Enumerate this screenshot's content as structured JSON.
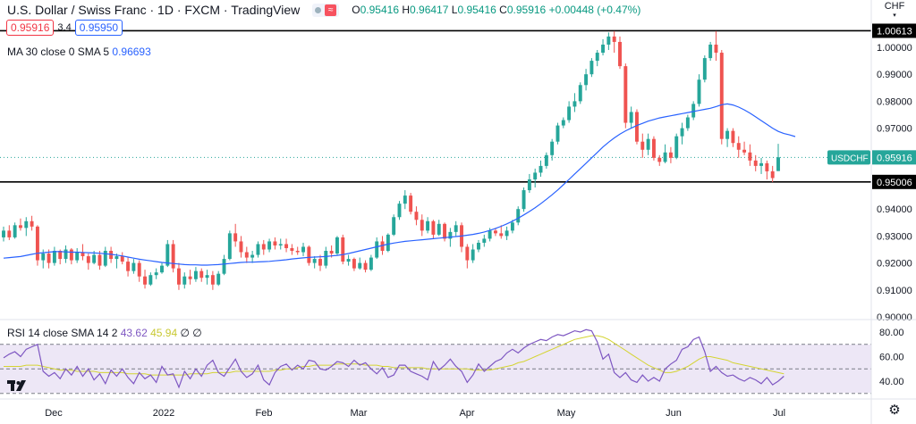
{
  "header": {
    "title": "U.S. Dollar / Swiss Franc · 1D · FXCM · TradingView",
    "open_label": "O",
    "open": "0.95416",
    "high_label": "H",
    "high": "0.96417",
    "low_label": "L",
    "low": "0.95416",
    "close_label": "C",
    "close": "0.95916",
    "change": "+0.00448 (+0.47%)",
    "sell_price": "0.95916",
    "spread": "3.4",
    "buy_price": "0.95950",
    "ma_label": "MA 30 close 0 SMA 5",
    "ma_value": "0.96693",
    "rsi_label": "RSI 14 close SMA 14 2",
    "rsi_value": "43.62",
    "rsi_sma_value": "45.94",
    "rsi_extra": "∅ ∅"
  },
  "colors": {
    "up": "#26a69a",
    "down": "#ef5350",
    "ma": "#2962ff",
    "rsi": "#7e57c2",
    "rsi_sma": "#d4d432",
    "rsi_band": "#ede7f6"
  },
  "chart_data": [
    {
      "type": "candlestick",
      "title": "U.S. Dollar / Swiss Franc · 1D · FXCM",
      "currency": "CHF",
      "ylim": [
        0.9,
        1.009
      ],
      "y_ticks": [
        "1.00000",
        "0.99000",
        "0.98000",
        "0.97000",
        "0.96000",
        "0.95000",
        "0.94000",
        "0.93000",
        "0.92000",
        "0.91000",
        "0.90000"
      ],
      "x_ticks": [
        "Dec",
        "2022",
        "Feb",
        "Mar",
        "Apr",
        "May",
        "Jun",
        "Jul"
      ],
      "horizontal_levels": [
        {
          "label": "1.00613",
          "value": 1.00613
        },
        {
          "label": "0.95006",
          "value": 0.95006
        }
      ],
      "current_price": {
        "label": "USDCHF",
        "value": "0.95916"
      },
      "ohlc": [
        [
          0.9295,
          0.9335,
          0.928,
          0.932
        ],
        [
          0.932,
          0.934,
          0.9285,
          0.9295
        ],
        [
          0.9295,
          0.935,
          0.929,
          0.934
        ],
        [
          0.934,
          0.9365,
          0.932,
          0.933
        ],
        [
          0.933,
          0.937,
          0.93,
          0.9355
        ],
        [
          0.9355,
          0.9375,
          0.932,
          0.9335
        ],
        [
          0.9335,
          0.934,
          0.919,
          0.921
        ],
        [
          0.921,
          0.925,
          0.918,
          0.9235
        ],
        [
          0.9235,
          0.925,
          0.918,
          0.92
        ],
        [
          0.92,
          0.926,
          0.919,
          0.9245
        ],
        [
          0.9245,
          0.925,
          0.9195,
          0.9215
        ],
        [
          0.9215,
          0.9265,
          0.92,
          0.925
        ],
        [
          0.925,
          0.9255,
          0.9195,
          0.921
        ],
        [
          0.921,
          0.9255,
          0.92,
          0.924
        ],
        [
          0.924,
          0.927,
          0.921,
          0.9225
        ],
        [
          0.9225,
          0.9235,
          0.9175,
          0.92
        ],
        [
          0.92,
          0.9245,
          0.9195,
          0.923
        ],
        [
          0.923,
          0.9245,
          0.9175,
          0.919
        ],
        [
          0.919,
          0.926,
          0.9185,
          0.9245
        ],
        [
          0.9245,
          0.926,
          0.92,
          0.9215
        ],
        [
          0.9215,
          0.9235,
          0.918,
          0.9225
        ],
        [
          0.9225,
          0.924,
          0.9195,
          0.9205
        ],
        [
          0.9205,
          0.922,
          0.915,
          0.917
        ],
        [
          0.917,
          0.9215,
          0.916,
          0.92
        ],
        [
          0.92,
          0.921,
          0.913,
          0.915
        ],
        [
          0.915,
          0.9175,
          0.9105,
          0.912
        ],
        [
          0.912,
          0.9165,
          0.9115,
          0.9155
        ],
        [
          0.9155,
          0.918,
          0.914,
          0.9165
        ],
        [
          0.9165,
          0.92,
          0.916,
          0.919
        ],
        [
          0.919,
          0.9285,
          0.9185,
          0.927
        ],
        [
          0.927,
          0.9285,
          0.9165,
          0.918
        ],
        [
          0.918,
          0.92,
          0.91,
          0.912
        ],
        [
          0.912,
          0.9165,
          0.9105,
          0.915
        ],
        [
          0.915,
          0.9175,
          0.912,
          0.914
        ],
        [
          0.914,
          0.9185,
          0.913,
          0.917
        ],
        [
          0.917,
          0.918,
          0.913,
          0.9145
        ],
        [
          0.9145,
          0.9175,
          0.912,
          0.9155
        ],
        [
          0.9155,
          0.917,
          0.91,
          0.912
        ],
        [
          0.912,
          0.917,
          0.9115,
          0.916
        ],
        [
          0.916,
          0.923,
          0.9155,
          0.9215
        ],
        [
          0.9215,
          0.932,
          0.921,
          0.931
        ],
        [
          0.931,
          0.9345,
          0.926,
          0.928
        ],
        [
          0.928,
          0.93,
          0.922,
          0.924
        ],
        [
          0.924,
          0.926,
          0.92,
          0.922
        ],
        [
          0.922,
          0.9245,
          0.92,
          0.923
        ],
        [
          0.923,
          0.928,
          0.922,
          0.927
        ],
        [
          0.927,
          0.9285,
          0.923,
          0.925
        ],
        [
          0.925,
          0.929,
          0.924,
          0.928
        ],
        [
          0.928,
          0.9295,
          0.925,
          0.9265
        ],
        [
          0.9265,
          0.929,
          0.925,
          0.927
        ],
        [
          0.927,
          0.929,
          0.924,
          0.9255
        ],
        [
          0.9255,
          0.927,
          0.923,
          0.9245
        ],
        [
          0.9245,
          0.926,
          0.923,
          0.924
        ],
        [
          0.924,
          0.9275,
          0.9225,
          0.926
        ],
        [
          0.926,
          0.9265,
          0.919,
          0.92
        ],
        [
          0.92,
          0.9225,
          0.918,
          0.9215
        ],
        [
          0.9215,
          0.923,
          0.917,
          0.919
        ],
        [
          0.919,
          0.926,
          0.918,
          0.9245
        ],
        [
          0.9245,
          0.9265,
          0.922,
          0.9235
        ],
        [
          0.9235,
          0.93,
          0.923,
          0.9295
        ],
        [
          0.9295,
          0.9305,
          0.9195,
          0.9205
        ],
        [
          0.9205,
          0.923,
          0.919,
          0.9215
        ],
        [
          0.9215,
          0.922,
          0.917,
          0.918
        ],
        [
          0.918,
          0.922,
          0.9175,
          0.92
        ],
        [
          0.92,
          0.921,
          0.9165,
          0.9175
        ],
        [
          0.9175,
          0.923,
          0.917,
          0.922
        ],
        [
          0.922,
          0.9295,
          0.9215,
          0.928
        ],
        [
          0.928,
          0.93,
          0.923,
          0.9245
        ],
        [
          0.9245,
          0.931,
          0.924,
          0.9305
        ],
        [
          0.9305,
          0.938,
          0.93,
          0.937
        ],
        [
          0.937,
          0.943,
          0.936,
          0.942
        ],
        [
          0.942,
          0.947,
          0.94,
          0.945
        ],
        [
          0.945,
          0.946,
          0.938,
          0.939
        ],
        [
          0.939,
          0.941,
          0.934,
          0.936
        ],
        [
          0.936,
          0.938,
          0.93,
          0.932
        ],
        [
          0.932,
          0.937,
          0.931,
          0.9355
        ],
        [
          0.9355,
          0.936,
          0.929,
          0.9305
        ],
        [
          0.9305,
          0.936,
          0.93,
          0.9345
        ],
        [
          0.9345,
          0.935,
          0.928,
          0.929
        ],
        [
          0.929,
          0.933,
          0.926,
          0.9315
        ],
        [
          0.9315,
          0.9355,
          0.93,
          0.934
        ],
        [
          0.934,
          0.935,
          0.924,
          0.926
        ],
        [
          0.926,
          0.927,
          0.918,
          0.921
        ],
        [
          0.921,
          0.927,
          0.92,
          0.925
        ],
        [
          0.925,
          0.9285,
          0.924,
          0.9275
        ],
        [
          0.9275,
          0.9305,
          0.926,
          0.929
        ],
        [
          0.929,
          0.933,
          0.928,
          0.932
        ],
        [
          0.932,
          0.933,
          0.93,
          0.931
        ],
        [
          0.931,
          0.934,
          0.929,
          0.93
        ],
        [
          0.93,
          0.9335,
          0.9285,
          0.932
        ],
        [
          0.932,
          0.936,
          0.931,
          0.935
        ],
        [
          0.935,
          0.941,
          0.934,
          0.94
        ],
        [
          0.94,
          0.948,
          0.939,
          0.947
        ],
        [
          0.947,
          0.953,
          0.946,
          0.951
        ],
        [
          0.951,
          0.955,
          0.948,
          0.9535
        ],
        [
          0.9535,
          0.958,
          0.952,
          0.956
        ],
        [
          0.956,
          0.961,
          0.955,
          0.96
        ],
        [
          0.96,
          0.966,
          0.958,
          0.965
        ],
        [
          0.965,
          0.972,
          0.964,
          0.971
        ],
        [
          0.971,
          0.974,
          0.97,
          0.973
        ],
        [
          0.973,
          0.98,
          0.972,
          0.978
        ],
        [
          0.978,
          0.983,
          0.976,
          0.98
        ],
        [
          0.98,
          0.987,
          0.979,
          0.986
        ],
        [
          0.986,
          0.992,
          0.984,
          0.99
        ],
        [
          0.99,
          0.996,
          0.989,
          0.995
        ],
        [
          0.995,
          0.999,
          0.993,
          0.998
        ],
        [
          0.998,
          1.003,
          0.997,
          1.001
        ],
        [
          1.001,
          1.0055,
          0.999,
          1.004
        ],
        [
          1.004,
          1.006,
          0.998,
          1.002
        ],
        [
          1.002,
          1.004,
          0.992,
          0.993
        ],
        [
          0.993,
          0.994,
          0.97,
          0.972
        ],
        [
          0.972,
          0.978,
          0.97,
          0.976
        ],
        [
          0.976,
          0.977,
          0.964,
          0.965
        ],
        [
          0.965,
          0.968,
          0.959,
          0.962
        ],
        [
          0.962,
          0.968,
          0.96,
          0.966
        ],
        [
          0.966,
          0.967,
          0.958,
          0.959
        ],
        [
          0.959,
          0.96,
          0.956,
          0.9575
        ],
        [
          0.9575,
          0.964,
          0.957,
          0.961
        ],
        [
          0.961,
          0.963,
          0.957,
          0.959
        ],
        [
          0.959,
          0.968,
          0.9585,
          0.967
        ],
        [
          0.967,
          0.972,
          0.964,
          0.97
        ],
        [
          0.97,
          0.975,
          0.969,
          0.974
        ],
        [
          0.974,
          0.98,
          0.973,
          0.979
        ],
        [
          0.979,
          0.99,
          0.978,
          0.988
        ],
        [
          0.988,
          0.997,
          0.987,
          0.996
        ],
        [
          0.996,
          1.002,
          0.995,
          1.001
        ],
        [
          1.001,
          1.006,
          0.995,
          0.998
        ],
        [
          0.998,
          0.999,
          0.964,
          0.966
        ],
        [
          0.966,
          0.97,
          0.963,
          0.969
        ],
        [
          0.969,
          0.97,
          0.963,
          0.9645
        ],
        [
          0.9645,
          0.967,
          0.959,
          0.962
        ],
        [
          0.962,
          0.965,
          0.96,
          0.961
        ],
        [
          0.961,
          0.964,
          0.956,
          0.958
        ],
        [
          0.958,
          0.96,
          0.954,
          0.956
        ],
        [
          0.956,
          0.959,
          0.953,
          0.957
        ],
        [
          0.957,
          0.958,
          0.951,
          0.954
        ],
        [
          0.954,
          0.956,
          0.95,
          0.9515
        ],
        [
          0.9541,
          0.9642,
          0.9541,
          0.9592
        ]
      ],
      "ma30": [
        0.9218,
        0.922,
        0.9222,
        0.9224,
        0.9228,
        0.9232,
        0.9236,
        0.9238,
        0.924,
        0.9242,
        0.9242,
        0.9241,
        0.924,
        0.924,
        0.9239,
        0.9238,
        0.9237,
        0.9236,
        0.9234,
        0.9232,
        0.9229,
        0.9226,
        0.9222,
        0.9218,
        0.9214,
        0.9211,
        0.9208,
        0.9205,
        0.9202,
        0.92,
        0.9198,
        0.9196,
        0.9194,
        0.9193,
        0.9193,
        0.9192,
        0.9192,
        0.9193,
        0.9194,
        0.9196,
        0.9198,
        0.92,
        0.9202,
        0.9203,
        0.9203,
        0.9204,
        0.9205,
        0.9206,
        0.9208,
        0.921,
        0.9212,
        0.9215,
        0.9217,
        0.9219,
        0.9221,
        0.9222,
        0.9223,
        0.9224,
        0.9226,
        0.9228,
        0.9231,
        0.9235,
        0.924,
        0.9245,
        0.925,
        0.9255,
        0.926,
        0.9265,
        0.927,
        0.9274,
        0.9277,
        0.928,
        0.9282,
        0.9284,
        0.9286,
        0.9288,
        0.929,
        0.9292,
        0.9294,
        0.9296,
        0.9298,
        0.93,
        0.9303,
        0.9306,
        0.931,
        0.9315,
        0.9321,
        0.9328,
        0.9336,
        0.9345,
        0.9355,
        0.9366,
        0.9378,
        0.9391,
        0.9405,
        0.942,
        0.9436,
        0.9453,
        0.9471,
        0.949,
        0.951,
        0.953,
        0.955,
        0.957,
        0.959,
        0.961,
        0.963,
        0.9648,
        0.9664,
        0.9678,
        0.969,
        0.97,
        0.971,
        0.9718,
        0.9726,
        0.9732,
        0.9738,
        0.9742,
        0.9746,
        0.975,
        0.9754,
        0.9758,
        0.9762,
        0.9766,
        0.977,
        0.9774,
        0.978,
        0.9787,
        0.979,
        0.9786,
        0.9778,
        0.9768,
        0.9756,
        0.9742,
        0.9728,
        0.9714,
        0.97,
        0.9688,
        0.968,
        0.9675,
        0.9669
      ]
    },
    {
      "type": "line",
      "title": "RSI 14 close SMA 14 2",
      "ylim": [
        30,
        85
      ],
      "y_ticks": [
        "80.00",
        "60.00",
        "40.00"
      ],
      "bands": [
        70,
        50,
        30
      ],
      "rsi": [
        59,
        62,
        64,
        60,
        66,
        68,
        70,
        48,
        44,
        47,
        42,
        50,
        45,
        52,
        44,
        50,
        41,
        46,
        38,
        49,
        44,
        50,
        43,
        38,
        47,
        42,
        45,
        39,
        52,
        45,
        46,
        35,
        48,
        42,
        50,
        44,
        53,
        57,
        47,
        44,
        51,
        58,
        48,
        43,
        46,
        53,
        41,
        37,
        47,
        52,
        54,
        49,
        53,
        50,
        57,
        56,
        50,
        49,
        52,
        56,
        55,
        52,
        57,
        53,
        55,
        50,
        46,
        51,
        43,
        45,
        53,
        53,
        48,
        46,
        44,
        41,
        56,
        49,
        53,
        58,
        52,
        48,
        39,
        45,
        54,
        48,
        52,
        56,
        58,
        63,
        66,
        63,
        67,
        70,
        72,
        74,
        73,
        76,
        78,
        77,
        79,
        81,
        80,
        82,
        81,
        72,
        58,
        62,
        47,
        43,
        47,
        41,
        39,
        45,
        40,
        43,
        40,
        50,
        54,
        57,
        66,
        68,
        74,
        76,
        64,
        48,
        52,
        47,
        44,
        45,
        42,
        40,
        43,
        41,
        38,
        43,
        37,
        40,
        44
      ],
      "rsi_sma": [
        52,
        52,
        52,
        52,
        53,
        53,
        53,
        52,
        51,
        50,
        49,
        49,
        49,
        48,
        48,
        48,
        48,
        47,
        47,
        47,
        47,
        47,
        46,
        46,
        46,
        46,
        45,
        45,
        45,
        45,
        45,
        45,
        45,
        46,
        46,
        46,
        46,
        47,
        47,
        47,
        47,
        48,
        48,
        48,
        48,
        48,
        48,
        48,
        49,
        49,
        50,
        50,
        51,
        52,
        52,
        53,
        53,
        53,
        53,
        54,
        54,
        54,
        54,
        54,
        53,
        53,
        53,
        52,
        52,
        51,
        51,
        51,
        51,
        51,
        51,
        50,
        50,
        50,
        50,
        50,
        50,
        50,
        50,
        49,
        49,
        49,
        49,
        50,
        51,
        52,
        53,
        55,
        56,
        58,
        60,
        62,
        64,
        66,
        68,
        70,
        72,
        74,
        75,
        76,
        77,
        77,
        76,
        74,
        71,
        68,
        65,
        62,
        59,
        56,
        53,
        51,
        49,
        47,
        47,
        48,
        50,
        52,
        55,
        58,
        60,
        60,
        59,
        58,
        57,
        55,
        54,
        53,
        52,
        51,
        50,
        49,
        48,
        47,
        46
      ]
    }
  ]
}
